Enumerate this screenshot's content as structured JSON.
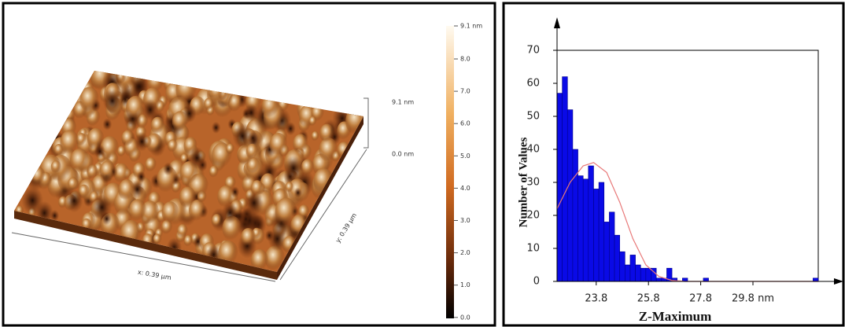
{
  "afm_image": {
    "colorbar_labels": [
      "9.1 nm",
      "8.0",
      "7.0",
      "6.0",
      "5.0",
      "4.0",
      "3.0",
      "2.0",
      "1.0",
      "0.0"
    ],
    "z_labels": [
      "9.1 nm",
      "0.0 nm"
    ],
    "x_label": "x: 0.39 µm",
    "y_label": "y: 0.39 µm"
  },
  "chart_data": {
    "type": "histogram",
    "xlabel": "Z-Maximum",
    "ylabel": "Number of Values",
    "bins": [
      22.3,
      22.5,
      22.7,
      22.9,
      23.1,
      23.3,
      23.5,
      23.7,
      23.9,
      24.1,
      24.3,
      24.5,
      24.7,
      24.9,
      25.1,
      25.3,
      25.5,
      25.7,
      25.9,
      26.1,
      26.3,
      26.5,
      26.7,
      26.9,
      27.1,
      27.3,
      27.5,
      27.7,
      27.9,
      28.1,
      28.3,
      28.5,
      28.7,
      28.9,
      29.1,
      29.3,
      29.5,
      29.7,
      29.9,
      30.1,
      30.3,
      30.5,
      30.7,
      30.9,
      31.1,
      31.3,
      31.5,
      31.7,
      31.9,
      32.1,
      32.3
    ],
    "values": [
      57,
      62,
      52,
      40,
      32,
      31,
      35,
      28,
      30,
      18,
      21,
      14,
      9,
      5,
      8,
      5,
      4,
      4,
      4,
      1,
      1,
      4,
      1,
      0,
      1,
      0,
      0,
      0,
      1,
      0,
      0,
      0,
      0,
      0,
      0,
      0,
      0,
      0,
      0,
      0,
      0,
      0,
      0,
      0,
      0,
      0,
      0,
      0,
      0,
      1
    ],
    "color": "#0a0ae6",
    "fit_curve": {
      "color": "#e87878",
      "x": [
        22.3,
        22.8,
        23.3,
        23.7,
        24.2,
        24.7,
        25.2,
        25.7,
        26.2,
        26.7,
        27.2,
        32.3
      ],
      "y": [
        22,
        30,
        35,
        36,
        33,
        24,
        13,
        5,
        1.5,
        0.3,
        0,
        0
      ]
    },
    "xlim": [
      22.3,
      32.3
    ],
    "ylim": [
      0,
      70
    ],
    "xticks": [
      23.8,
      25.8,
      27.8,
      {
        "value": 29.8,
        "label": "29.8 nm"
      }
    ],
    "yticks": [
      0,
      10,
      20,
      30,
      40,
      50,
      60,
      70
    ]
  }
}
